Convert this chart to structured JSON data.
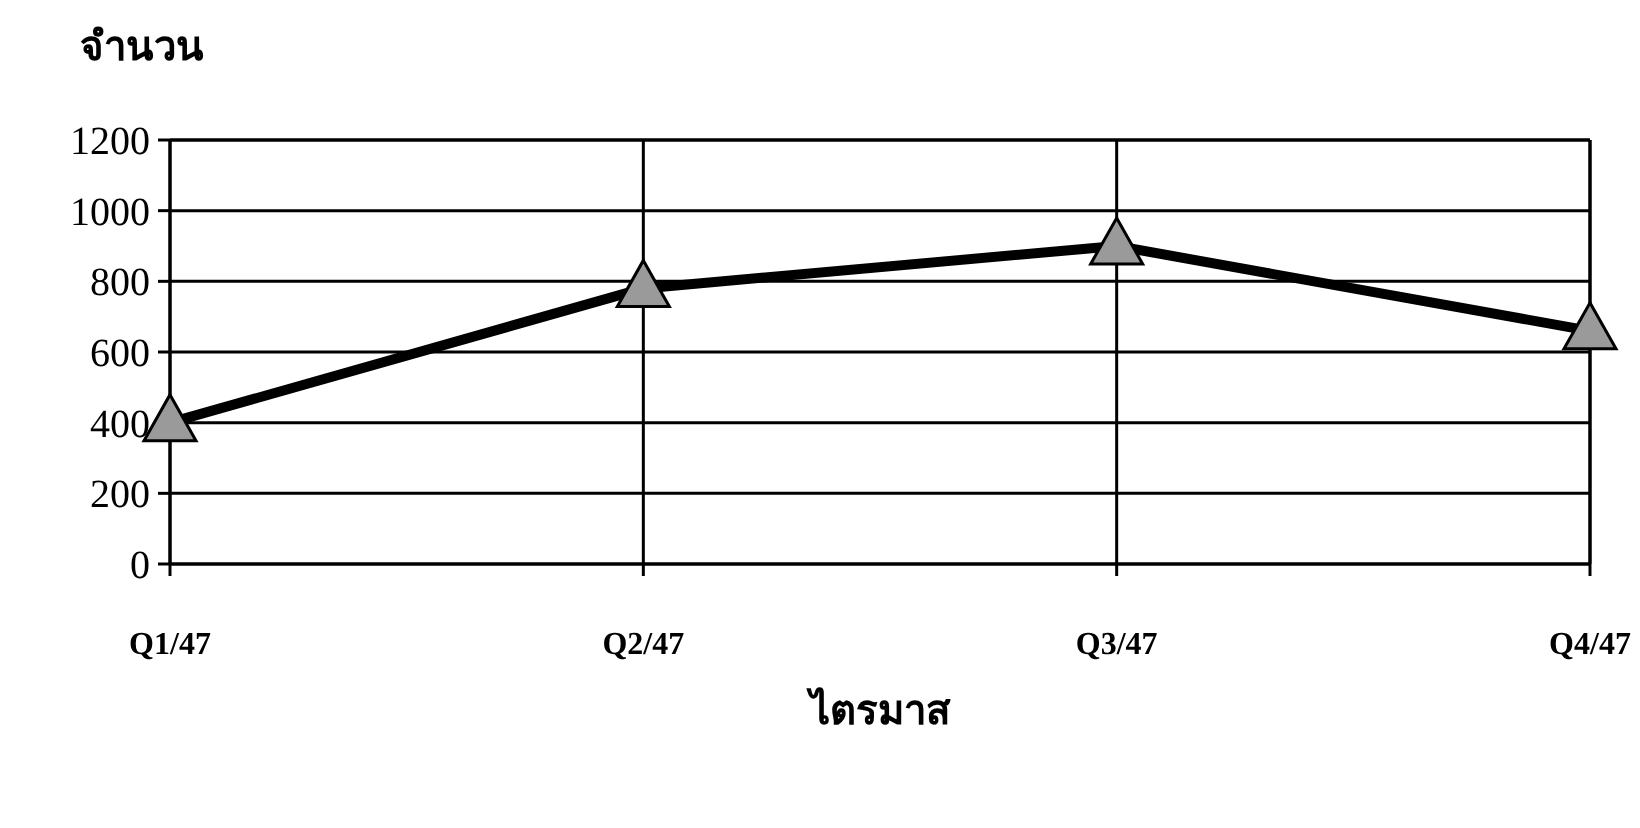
{
  "chart_data": {
    "type": "line",
    "xlabel": "ไตรมาส",
    "ylabel": "จำนวน",
    "categories": [
      "Q1/47",
      "Q2/47",
      "Q3/47",
      "Q4/47"
    ],
    "values": [
      400,
      780,
      900,
      660
    ],
    "color": "#000000",
    "marker": "triangle",
    "grid": true,
    "ylim": [
      0,
      1200
    ],
    "yticks": [
      0,
      200,
      400,
      600,
      800,
      1000,
      1200
    ]
  }
}
